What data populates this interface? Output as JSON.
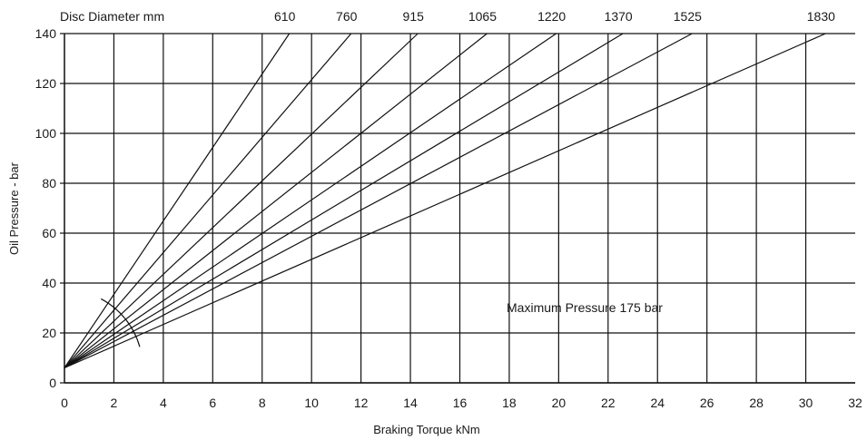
{
  "chart_data": {
    "type": "line",
    "title": "",
    "xlabel": "Braking Torque kNm",
    "ylabel": "Oil Pressure - bar",
    "xlim": [
      0,
      32
    ],
    "ylim": [
      0,
      140
    ],
    "x_ticks": [
      "0",
      "2",
      "4",
      "6",
      "8",
      "10",
      "12",
      "14",
      "16",
      "18",
      "20",
      "22",
      "24",
      "26",
      "28",
      "30",
      "32"
    ],
    "y_ticks": [
      "0",
      "20",
      "40",
      "60",
      "80",
      "100",
      "120",
      "140"
    ],
    "top_label": "Disc Diameter mm",
    "grid": true,
    "annotation": "Maximum Pressure 175 bar",
    "series": [
      {
        "name": "610",
        "points": [
          [
            0,
            6
          ],
          [
            9.1,
            140
          ]
        ]
      },
      {
        "name": "760",
        "points": [
          [
            0,
            6
          ],
          [
            11.6,
            140
          ]
        ]
      },
      {
        "name": "915",
        "points": [
          [
            0,
            6
          ],
          [
            14.3,
            140
          ]
        ]
      },
      {
        "name": "1065",
        "points": [
          [
            0,
            6
          ],
          [
            17.1,
            140
          ]
        ]
      },
      {
        "name": "1220",
        "points": [
          [
            0,
            6
          ],
          [
            19.9,
            140
          ]
        ]
      },
      {
        "name": "1370",
        "points": [
          [
            0,
            6
          ],
          [
            22.6,
            140
          ]
        ]
      },
      {
        "name": "1525",
        "points": [
          [
            0,
            6
          ],
          [
            25.4,
            140
          ]
        ]
      },
      {
        "name": "1830",
        "points": [
          [
            0,
            6
          ],
          [
            30.8,
            140
          ]
        ]
      }
    ]
  }
}
